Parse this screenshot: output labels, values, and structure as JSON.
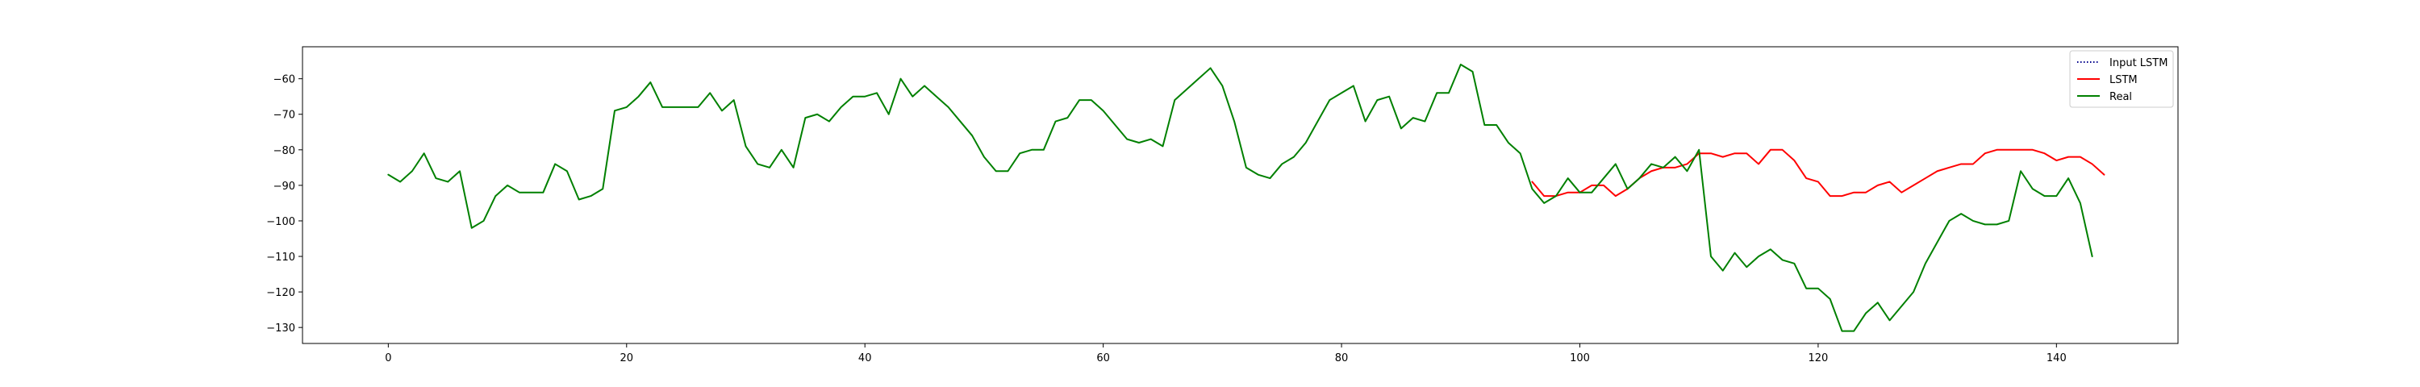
{
  "chart_data": {
    "type": "line",
    "title": "",
    "xlabel": "",
    "ylabel": "",
    "xlim": [
      -7.2,
      150.2
    ],
    "ylim": [
      -134.5,
      -51.0
    ],
    "xticks": [
      0,
      20,
      40,
      60,
      80,
      100,
      120,
      140
    ],
    "yticks": [
      -130,
      -120,
      -110,
      -100,
      -90,
      -80,
      -70,
      -60
    ],
    "grid": false,
    "legend": "top-right",
    "series": [
      {
        "name": "Input LSTM",
        "color": "#00008b",
        "style": "dotted",
        "x_start": 0,
        "values": []
      },
      {
        "name": "LSTM",
        "color": "#ff0000",
        "style": "solid",
        "x_start": 96,
        "values": [
          -89,
          -93,
          -93,
          -92,
          -92,
          -90,
          -90,
          -93,
          -91,
          -88,
          -86,
          -85,
          -85,
          -84,
          -81,
          -81,
          -82,
          -81,
          -81,
          -84,
          -80,
          -80,
          -83,
          -88,
          -89,
          -93,
          -93,
          -92,
          -92,
          -90,
          -89,
          -92,
          -90,
          -88,
          -86,
          -85,
          -84,
          -84,
          -81,
          -80,
          -80,
          -80,
          -80,
          -81,
          -83,
          -82,
          -82,
          -84,
          -87
        ]
      },
      {
        "name": "Real",
        "color": "#008000",
        "style": "solid",
        "x_start": 0,
        "values": [
          -87,
          -89,
          -86,
          -81,
          -88,
          -89,
          -86,
          -102,
          -100,
          -93,
          -90,
          -92,
          -92,
          -92,
          -84,
          -86,
          -94,
          -93,
          -91,
          -69,
          -68,
          -65,
          -61,
          -68,
          -68,
          -68,
          -68,
          -64,
          -69,
          -66,
          -79,
          -84,
          -85,
          -80,
          -85,
          -71,
          -70,
          -72,
          -68,
          -65,
          -65,
          -64,
          -70,
          -60,
          -65,
          -62,
          -65,
          -68,
          -72,
          -76,
          -82,
          -86,
          -86,
          -81,
          -80,
          -80,
          -72,
          -71,
          -66,
          -66,
          -69,
          -73,
          -77,
          -78,
          -77,
          -79,
          -66,
          -63,
          -60,
          -57,
          -62,
          -72,
          -85,
          -87,
          -88,
          -84,
          -82,
          -78,
          -72,
          -66,
          -64,
          -62,
          -72,
          -66,
          -65,
          -74,
          -71,
          -72,
          -64,
          -64,
          -56,
          -58,
          -73,
          -73,
          -78,
          -81,
          -91,
          -95,
          -93,
          -88,
          -92,
          -92,
          -88,
          -84,
          -91,
          -88,
          -84,
          -85,
          -82,
          -86,
          -80,
          -110,
          -114,
          -109,
          -113,
          -110,
          -108,
          -111,
          -112,
          -119,
          -119,
          -122,
          -131,
          -131,
          -126,
          -123,
          -128,
          -124,
          -120,
          -112,
          -106,
          -100,
          -98,
          -100,
          -101,
          -101,
          -100,
          -86,
          -91,
          -93,
          -93,
          -88,
          -95,
          -110
        ]
      }
    ]
  }
}
